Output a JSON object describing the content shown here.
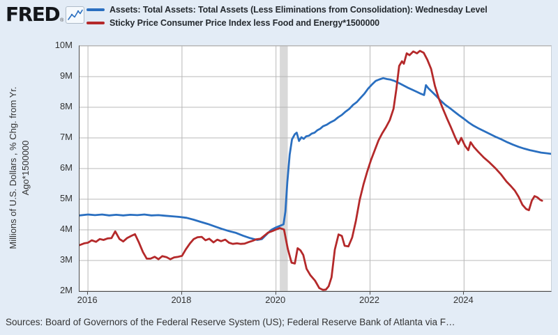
{
  "header": {
    "logo_text": "FRED",
    "registered_mark": "®",
    "legend": [
      {
        "label": "Assets: Total Assets: Total Assets (Less Eliminations from Consolidation): Wednesday Level",
        "color": "#2a6fc0"
      },
      {
        "label": "Sticky Price Consumer Price Index less Food and Energy*1500000",
        "color": "#b4292a"
      }
    ]
  },
  "y_axis": {
    "title": "Millions of U.S. Dollars , % Chg. from Yr. Ago*1500000",
    "title_lines": [
      "Millions of U.S. Dollars , % Chg. from Yr.",
      "Ago*1500000"
    ],
    "ticks": [
      {
        "label": "10M",
        "value": 10
      },
      {
        "label": "9M",
        "value": 9
      },
      {
        "label": "8M",
        "value": 8
      },
      {
        "label": "7M",
        "value": 7
      },
      {
        "label": "6M",
        "value": 6
      },
      {
        "label": "5M",
        "value": 5
      },
      {
        "label": "4M",
        "value": 4
      },
      {
        "label": "3M",
        "value": 3
      },
      {
        "label": "2M",
        "value": 2
      }
    ]
  },
  "x_axis": {
    "ticks": [
      {
        "label": "2016",
        "value": 2016
      },
      {
        "label": "2018",
        "value": 2018
      },
      {
        "label": "2020",
        "value": 2020
      },
      {
        "label": "2022",
        "value": 2022
      },
      {
        "label": "2024",
        "value": 2024
      }
    ]
  },
  "footer": {
    "text": "Sources: Board of Governors of the Federal Reserve System (US); Federal Reserve Bank of Atlanta via F…"
  },
  "chart_data": {
    "type": "line",
    "title": "",
    "xlabel": "",
    "ylabel": "Millions of U.S. Dollars , % Chg. from Yr. Ago*1500000",
    "x_range": [
      2015.82,
      2025.85
    ],
    "y_range": [
      2,
      10
    ],
    "y_tick_unit": "M",
    "grid": true,
    "legend_position": "top",
    "colors": {
      "gridline": "#b8b8b8",
      "recession_band": "#d9d9d9"
    },
    "recession_band": {
      "from": 2020.08,
      "to": 2020.25,
      "note": "gray vertical band in early 2020"
    },
    "series": [
      {
        "name": "Assets: Total Assets: Total Assets (Less Eliminations from Consolidation): Wednesday Level",
        "color": "#2a6fc0",
        "points": [
          [
            2015.82,
            4.47
          ],
          [
            2016.0,
            4.5
          ],
          [
            2016.15,
            4.48
          ],
          [
            2016.3,
            4.5
          ],
          [
            2016.45,
            4.47
          ],
          [
            2016.6,
            4.49
          ],
          [
            2016.75,
            4.47
          ],
          [
            2016.9,
            4.49
          ],
          [
            2017.05,
            4.48
          ],
          [
            2017.2,
            4.5
          ],
          [
            2017.35,
            4.47
          ],
          [
            2017.5,
            4.48
          ],
          [
            2017.65,
            4.46
          ],
          [
            2017.8,
            4.44
          ],
          [
            2017.95,
            4.42
          ],
          [
            2018.1,
            4.39
          ],
          [
            2018.25,
            4.33
          ],
          [
            2018.4,
            4.26
          ],
          [
            2018.55,
            4.19
          ],
          [
            2018.7,
            4.11
          ],
          [
            2018.85,
            4.03
          ],
          [
            2019.0,
            3.96
          ],
          [
            2019.15,
            3.9
          ],
          [
            2019.3,
            3.81
          ],
          [
            2019.45,
            3.73
          ],
          [
            2019.6,
            3.67
          ],
          [
            2019.7,
            3.7
          ],
          [
            2019.8,
            3.85
          ],
          [
            2019.9,
            4.0
          ],
          [
            2020.0,
            4.08
          ],
          [
            2020.1,
            4.14
          ],
          [
            2020.16,
            4.18
          ],
          [
            2020.2,
            4.6
          ],
          [
            2020.24,
            5.55
          ],
          [
            2020.29,
            6.45
          ],
          [
            2020.34,
            6.95
          ],
          [
            2020.4,
            7.12
          ],
          [
            2020.44,
            7.17
          ],
          [
            2020.49,
            6.9
          ],
          [
            2020.54,
            7.02
          ],
          [
            2020.59,
            6.97
          ],
          [
            2020.64,
            7.05
          ],
          [
            2020.7,
            7.07
          ],
          [
            2020.76,
            7.14
          ],
          [
            2020.82,
            7.17
          ],
          [
            2020.88,
            7.25
          ],
          [
            2020.94,
            7.3
          ],
          [
            2021.0,
            7.38
          ],
          [
            2021.08,
            7.43
          ],
          [
            2021.16,
            7.51
          ],
          [
            2021.24,
            7.57
          ],
          [
            2021.32,
            7.67
          ],
          [
            2021.4,
            7.75
          ],
          [
            2021.48,
            7.86
          ],
          [
            2021.56,
            7.95
          ],
          [
            2021.64,
            8.08
          ],
          [
            2021.72,
            8.17
          ],
          [
            2021.8,
            8.31
          ],
          [
            2021.88,
            8.44
          ],
          [
            2021.96,
            8.61
          ],
          [
            2022.04,
            8.74
          ],
          [
            2022.12,
            8.86
          ],
          [
            2022.2,
            8.91
          ],
          [
            2022.28,
            8.95
          ],
          [
            2022.36,
            8.92
          ],
          [
            2022.44,
            8.9
          ],
          [
            2022.52,
            8.86
          ],
          [
            2022.6,
            8.8
          ],
          [
            2022.7,
            8.72
          ],
          [
            2022.8,
            8.64
          ],
          [
            2022.9,
            8.57
          ],
          [
            2023.0,
            8.5
          ],
          [
            2023.08,
            8.44
          ],
          [
            2023.15,
            8.4
          ],
          [
            2023.19,
            8.72
          ],
          [
            2023.24,
            8.62
          ],
          [
            2023.32,
            8.5
          ],
          [
            2023.4,
            8.38
          ],
          [
            2023.5,
            8.22
          ],
          [
            2023.6,
            8.08
          ],
          [
            2023.7,
            7.97
          ],
          [
            2023.8,
            7.85
          ],
          [
            2023.9,
            7.73
          ],
          [
            2024.0,
            7.62
          ],
          [
            2024.1,
            7.5
          ],
          [
            2024.2,
            7.4
          ],
          [
            2024.32,
            7.3
          ],
          [
            2024.44,
            7.21
          ],
          [
            2024.56,
            7.12
          ],
          [
            2024.68,
            7.03
          ],
          [
            2024.8,
            6.95
          ],
          [
            2024.92,
            6.86
          ],
          [
            2025.04,
            6.78
          ],
          [
            2025.16,
            6.71
          ],
          [
            2025.28,
            6.65
          ],
          [
            2025.4,
            6.6
          ],
          [
            2025.52,
            6.56
          ],
          [
            2025.64,
            6.52
          ],
          [
            2025.75,
            6.5
          ],
          [
            2025.85,
            6.48
          ]
        ]
      },
      {
        "name": "Sticky Price Consumer Price Index less Food and Energy*1500000",
        "color": "#b4292a",
        "points": [
          [
            2015.82,
            3.5
          ],
          [
            2015.92,
            3.56
          ],
          [
            2016.0,
            3.58
          ],
          [
            2016.08,
            3.66
          ],
          [
            2016.17,
            3.61
          ],
          [
            2016.25,
            3.7
          ],
          [
            2016.33,
            3.67
          ],
          [
            2016.42,
            3.72
          ],
          [
            2016.5,
            3.73
          ],
          [
            2016.58,
            3.95
          ],
          [
            2016.67,
            3.7
          ],
          [
            2016.75,
            3.62
          ],
          [
            2016.83,
            3.73
          ],
          [
            2016.92,
            3.8
          ],
          [
            2017.0,
            3.86
          ],
          [
            2017.08,
            3.6
          ],
          [
            2017.17,
            3.27
          ],
          [
            2017.25,
            3.06
          ],
          [
            2017.33,
            3.06
          ],
          [
            2017.42,
            3.12
          ],
          [
            2017.5,
            3.04
          ],
          [
            2017.58,
            3.14
          ],
          [
            2017.67,
            3.11
          ],
          [
            2017.75,
            3.04
          ],
          [
            2017.83,
            3.1
          ],
          [
            2017.92,
            3.12
          ],
          [
            2018.0,
            3.15
          ],
          [
            2018.08,
            3.36
          ],
          [
            2018.17,
            3.56
          ],
          [
            2018.25,
            3.7
          ],
          [
            2018.33,
            3.76
          ],
          [
            2018.42,
            3.77
          ],
          [
            2018.5,
            3.66
          ],
          [
            2018.58,
            3.71
          ],
          [
            2018.67,
            3.59
          ],
          [
            2018.75,
            3.68
          ],
          [
            2018.83,
            3.63
          ],
          [
            2018.92,
            3.68
          ],
          [
            2019.0,
            3.58
          ],
          [
            2019.08,
            3.54
          ],
          [
            2019.17,
            3.56
          ],
          [
            2019.25,
            3.54
          ],
          [
            2019.33,
            3.55
          ],
          [
            2019.42,
            3.6
          ],
          [
            2019.5,
            3.64
          ],
          [
            2019.58,
            3.69
          ],
          [
            2019.67,
            3.71
          ],
          [
            2019.75,
            3.81
          ],
          [
            2019.83,
            3.91
          ],
          [
            2019.92,
            3.96
          ],
          [
            2020.0,
            4.01
          ],
          [
            2020.08,
            4.06
          ],
          [
            2020.17,
            4.01
          ],
          [
            2020.25,
            3.38
          ],
          [
            2020.33,
            2.93
          ],
          [
            2020.4,
            2.9
          ],
          [
            2020.46,
            3.4
          ],
          [
            2020.52,
            3.33
          ],
          [
            2020.58,
            3.18
          ],
          [
            2020.65,
            2.73
          ],
          [
            2020.73,
            2.52
          ],
          [
            2020.83,
            2.34
          ],
          [
            2020.92,
            2.1
          ],
          [
            2021.0,
            2.04
          ],
          [
            2021.06,
            2.05
          ],
          [
            2021.12,
            2.16
          ],
          [
            2021.18,
            2.45
          ],
          [
            2021.25,
            3.35
          ],
          [
            2021.33,
            3.85
          ],
          [
            2021.4,
            3.8
          ],
          [
            2021.46,
            3.48
          ],
          [
            2021.54,
            3.46
          ],
          [
            2021.62,
            3.75
          ],
          [
            2021.7,
            4.3
          ],
          [
            2021.78,
            4.98
          ],
          [
            2021.86,
            5.48
          ],
          [
            2021.94,
            5.9
          ],
          [
            2022.02,
            6.28
          ],
          [
            2022.1,
            6.6
          ],
          [
            2022.18,
            6.92
          ],
          [
            2022.26,
            7.15
          ],
          [
            2022.34,
            7.35
          ],
          [
            2022.42,
            7.58
          ],
          [
            2022.5,
            7.95
          ],
          [
            2022.56,
            8.6
          ],
          [
            2022.62,
            9.35
          ],
          [
            2022.68,
            9.5
          ],
          [
            2022.72,
            9.42
          ],
          [
            2022.78,
            9.76
          ],
          [
            2022.84,
            9.7
          ],
          [
            2022.92,
            9.82
          ],
          [
            2023.0,
            9.76
          ],
          [
            2023.06,
            9.84
          ],
          [
            2023.14,
            9.78
          ],
          [
            2023.22,
            9.55
          ],
          [
            2023.3,
            9.25
          ],
          [
            2023.38,
            8.7
          ],
          [
            2023.46,
            8.3
          ],
          [
            2023.55,
            7.95
          ],
          [
            2023.64,
            7.62
          ],
          [
            2023.72,
            7.35
          ],
          [
            2023.81,
            7.02
          ],
          [
            2023.88,
            6.8
          ],
          [
            2023.94,
            7.0
          ],
          [
            2024.02,
            6.74
          ],
          [
            2024.09,
            6.6
          ],
          [
            2024.14,
            6.86
          ],
          [
            2024.21,
            6.7
          ],
          [
            2024.3,
            6.55
          ],
          [
            2024.42,
            6.36
          ],
          [
            2024.54,
            6.2
          ],
          [
            2024.66,
            6.02
          ],
          [
            2024.78,
            5.82
          ],
          [
            2024.9,
            5.58
          ],
          [
            2025.0,
            5.42
          ],
          [
            2025.08,
            5.28
          ],
          [
            2025.16,
            5.08
          ],
          [
            2025.24,
            4.82
          ],
          [
            2025.32,
            4.68
          ],
          [
            2025.38,
            4.64
          ],
          [
            2025.44,
            4.95
          ],
          [
            2025.5,
            5.1
          ],
          [
            2025.56,
            5.06
          ],
          [
            2025.62,
            4.98
          ],
          [
            2025.66,
            4.95
          ]
        ]
      }
    ]
  }
}
